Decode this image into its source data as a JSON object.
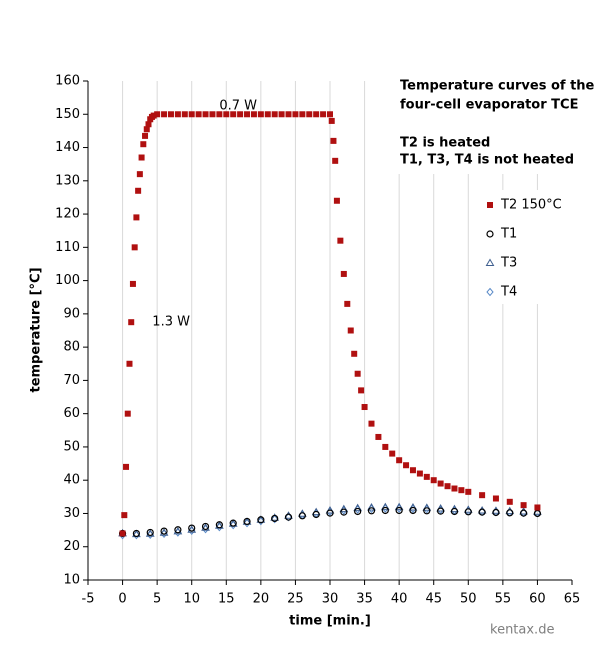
{
  "chart_data": {
    "type": "scatter",
    "annotations": [
      "Temperature curves of the",
      "four-cell evaporator TCE",
      "T2 is heated",
      "T1, T3, T4 is not heated"
    ],
    "power_labels": [
      {
        "text": "0.7 W",
        "x": 14,
        "y": 152.5
      },
      {
        "text": "1.3 W",
        "x": 4.3,
        "y": 87.5
      }
    ],
    "watermark": "kentax.de",
    "xlabel": "time [min.]",
    "ylabel": "temperature [°C]",
    "xlim": [
      -5,
      65
    ],
    "ylim": [
      10,
      160
    ],
    "xticks": [
      -5,
      0,
      5,
      10,
      15,
      20,
      25,
      30,
      35,
      40,
      45,
      50,
      55,
      60,
      65
    ],
    "yticks": [
      10,
      20,
      30,
      40,
      50,
      60,
      70,
      80,
      90,
      100,
      110,
      120,
      130,
      140,
      150,
      160
    ],
    "grid": true,
    "series": [
      {
        "name": "T2 150°C",
        "color": "#b01010",
        "marker": "square",
        "x": [
          0,
          0.25,
          0.5,
          0.75,
          1,
          1.25,
          1.5,
          1.75,
          2,
          2.25,
          2.5,
          2.75,
          3,
          3.25,
          3.5,
          3.75,
          4,
          4.25,
          4.5,
          5,
          6,
          7,
          8,
          9,
          10,
          11,
          12,
          13,
          14,
          15,
          16,
          17,
          18,
          19,
          20,
          21,
          22,
          23,
          24,
          25,
          26,
          27,
          28,
          29,
          30,
          30.25,
          30.5,
          30.75,
          31,
          31.5,
          32,
          32.5,
          33,
          33.5,
          34,
          34.5,
          35,
          36,
          37,
          38,
          39,
          40,
          41,
          42,
          43,
          44,
          45,
          46,
          47,
          48,
          49,
          50,
          52,
          54,
          56,
          58,
          60
        ],
        "values": [
          24,
          29.5,
          44,
          60,
          75,
          87.5,
          99,
          110,
          119,
          127,
          132,
          137,
          141,
          143.5,
          145.5,
          147,
          148.5,
          149.2,
          149.6,
          150,
          150,
          150,
          150,
          150,
          150,
          150,
          150,
          150,
          150,
          150,
          150,
          150,
          150,
          150,
          150,
          150,
          150,
          150,
          150,
          150,
          150,
          150,
          150,
          150,
          150,
          148,
          142,
          136,
          124,
          112,
          102,
          93,
          85,
          78,
          72,
          67,
          62,
          57,
          53,
          50,
          48,
          46,
          44.5,
          43,
          42,
          41,
          40,
          39,
          38.2,
          37.5,
          37,
          36.5,
          35.5,
          34.5,
          33.5,
          32.5,
          31.8
        ]
      },
      {
        "name": "T1",
        "color": "#000000",
        "marker": "circle",
        "x": [
          0,
          2,
          4,
          6,
          8,
          10,
          12,
          14,
          16,
          18,
          20,
          22,
          24,
          26,
          28,
          30,
          32,
          34,
          36,
          38,
          40,
          42,
          44,
          46,
          48,
          50,
          52,
          54,
          56,
          58,
          60
        ],
        "values": [
          24,
          24,
          24.3,
          24.7,
          25.1,
          25.6,
          26.1,
          26.6,
          27.1,
          27.6,
          28.1,
          28.5,
          28.9,
          29.3,
          29.7,
          30.1,
          30.4,
          30.6,
          30.8,
          30.9,
          30.9,
          30.9,
          30.8,
          30.7,
          30.6,
          30.5,
          30.4,
          30.3,
          30.2,
          30.1,
          30
        ]
      },
      {
        "name": "T3",
        "color": "#3f5f8f",
        "marker": "triangle",
        "x": [
          0,
          2,
          4,
          6,
          8,
          10,
          12,
          14,
          16,
          18,
          20,
          22,
          24,
          26,
          28,
          30,
          32,
          34,
          36,
          38,
          40,
          42,
          44,
          46,
          48,
          50,
          52,
          54,
          56,
          58,
          60
        ],
        "values": [
          24,
          23.8,
          23.9,
          24.2,
          24.6,
          25.1,
          25.7,
          26.3,
          26.9,
          27.5,
          28.1,
          28.7,
          29.3,
          29.9,
          30.4,
          30.9,
          31.3,
          31.6,
          31.8,
          31.9,
          31.9,
          31.8,
          31.7,
          31.5,
          31.3,
          31.1,
          30.9,
          30.8,
          30.7,
          30.6,
          30.5
        ]
      },
      {
        "name": "T4",
        "color": "#5b8bc8",
        "marker": "diamond",
        "x": [
          0,
          2,
          4,
          6,
          8,
          10,
          12,
          14,
          16,
          18,
          20,
          22,
          24,
          26,
          28,
          30,
          32,
          34,
          36,
          38,
          40,
          42,
          44,
          46,
          48,
          50,
          52,
          54,
          56,
          58,
          60
        ],
        "values": [
          23.5,
          23.5,
          23.6,
          23.9,
          24.3,
          24.8,
          25.3,
          25.9,
          26.5,
          27.1,
          27.7,
          28.3,
          28.9,
          29.5,
          30,
          30.5,
          30.9,
          31.2,
          31.4,
          31.5,
          31.5,
          31.4,
          31.3,
          31.1,
          30.9,
          30.7,
          30.5,
          30.4,
          30.3,
          30.2,
          30.1
        ]
      }
    ]
  }
}
